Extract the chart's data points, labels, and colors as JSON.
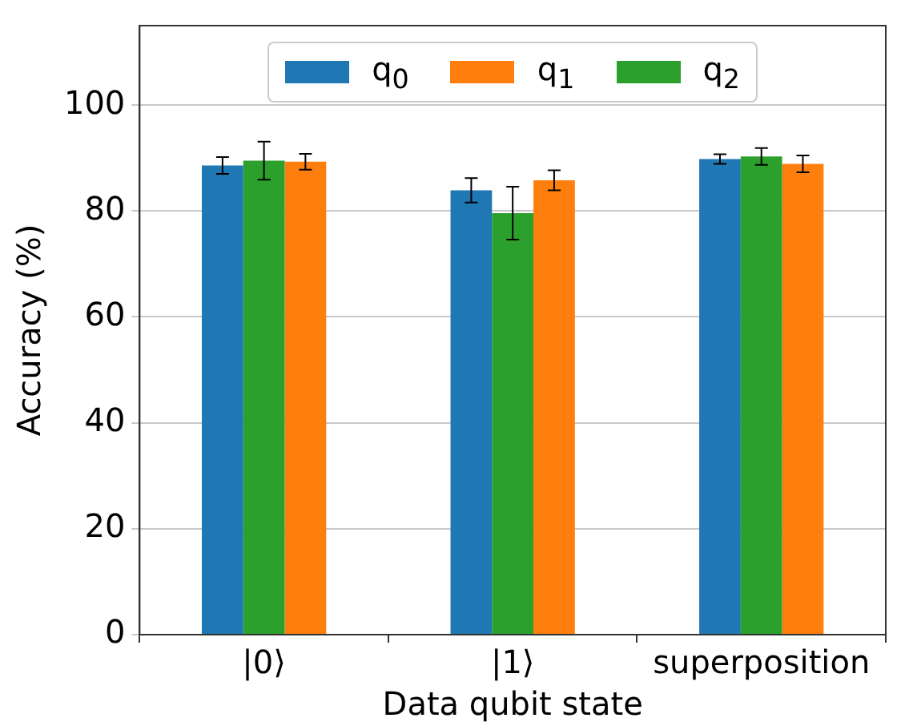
{
  "chart_data": {
    "type": "bar",
    "xlabel": "Data qubit state",
    "ylabel": "Accuracy (%)",
    "categories": [
      "|0⟩",
      "|1⟩",
      "superposition"
    ],
    "series": [
      {
        "name": "q$_{0}$",
        "color": "#1f77b4",
        "values": [
          88.6,
          83.9,
          89.8
        ],
        "errors": [
          1.6,
          2.3,
          0.9
        ]
      },
      {
        "name": "q$_{2}$",
        "color": "#2ca02c",
        "values": [
          89.5,
          79.6,
          90.3
        ],
        "errors": [
          3.6,
          5,
          1.6
        ]
      },
      {
        "name": "q$_{1}$",
        "color": "#ff7f0e",
        "values": [
          89.3,
          85.8,
          88.9
        ],
        "errors": [
          1.5,
          1.9,
          1.6
        ]
      }
    ],
    "ylim": [
      0,
      115
    ],
    "yticks": [
      0,
      20,
      40,
      60,
      80,
      100
    ],
    "grid": "y",
    "legend": "top"
  }
}
